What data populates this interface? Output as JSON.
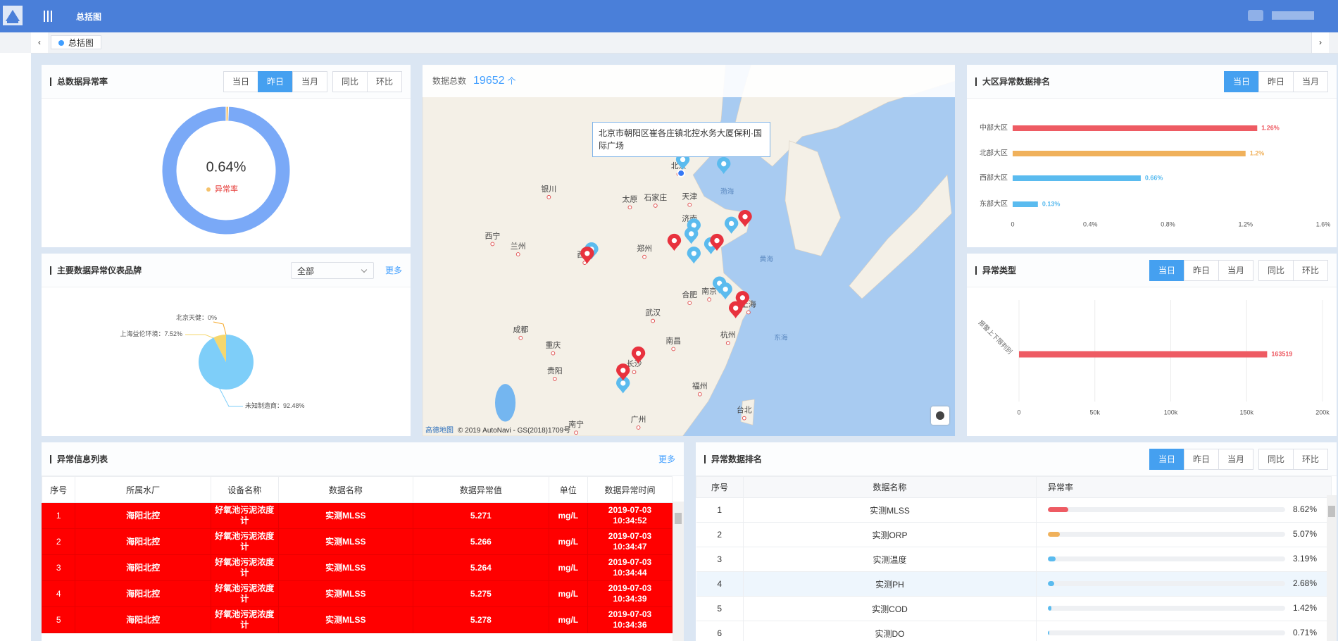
{
  "header": {
    "title": "总括图"
  },
  "tabs": [
    "总括图"
  ],
  "controls": {
    "period_buttons": [
      "当日",
      "昨日",
      "当月"
    ],
    "compare_buttons": [
      "同比",
      "环比"
    ],
    "more": "更多",
    "dropdown": "全部"
  },
  "chart_data": [
    {
      "type": "donut",
      "title": "总数据异常率",
      "categories": [
        "异常率",
        null
      ],
      "values": [
        0.64,
        99.36
      ],
      "value_labels": [
        "0.64%",
        null
      ],
      "colors": [
        "#f5c26b",
        "#7aa9f7"
      ],
      "active_button": 1,
      "compare_buttons": true
    },
    {
      "type": "pie",
      "title": "主要数据异常仪表品牌",
      "categories": [
        "北京天健",
        "上海益伦环境",
        "未知制造商"
      ],
      "values": [
        0,
        7.52,
        92.48
      ],
      "value_labels": [
        "0%",
        "7.52%",
        "92.48%"
      ],
      "label_separator": "：",
      "colors": [
        "#f5a623",
        "#f5d76e",
        "#7ecef9"
      ]
    },
    {
      "type": "hbar",
      "title": "大区异常数据排名",
      "categories": [
        "中部大区",
        "北部大区",
        "西部大区",
        "东部大区"
      ],
      "values": [
        1.26,
        1.2,
        0.66,
        0.13
      ],
      "value_labels": [
        "1.26%",
        "1.2%",
        "0.66%",
        "0.13%"
      ],
      "colors": [
        "#ee5b63",
        "#f0b15b",
        "#5abbef",
        "#5abbef"
      ],
      "xlim": [
        0,
        1.6
      ],
      "xticks": [
        0,
        {
          "value": 0.4,
          "label": "0.4%"
        },
        {
          "value": 0.8,
          "label": "0.8%"
        },
        {
          "value": 1.2,
          "label": "1.2%"
        },
        {
          "value": 1.6,
          "label": "1.6%"
        }
      ],
      "grid": false,
      "active_button": 0,
      "compare_buttons": false
    },
    {
      "type": "hbar",
      "title": "异常类型",
      "categories": [
        "报警上下限判别"
      ],
      "values": [
        163519
      ],
      "colors": [
        "#ee5b63"
      ],
      "xlim": [
        0,
        200000
      ],
      "xticks": [
        0,
        {
          "value": 50000,
          "label": "50k"
        },
        {
          "value": 100000,
          "label": "100k"
        },
        {
          "value": 150000,
          "label": "150k"
        },
        {
          "value": 200000,
          "label": "200k"
        }
      ],
      "grid": true,
      "active_button": 0,
      "compare_buttons": true
    }
  ],
  "map": {
    "total_label": "数据总数",
    "total": 19652,
    "unit": "个",
    "tooltip": "北京市朝阳区崔各庄镇北控水务大厦保利·国际广场",
    "places": [
      "北京",
      "天津",
      "石家庄",
      "太原",
      "银川",
      "兰州",
      "西宁",
      "西安",
      "郑州",
      "济南",
      "合肥",
      "南京",
      "上海",
      "杭州",
      "武汉",
      "成都",
      "重庆",
      "贵阳",
      "长沙",
      "南昌",
      "福州",
      "台北",
      "南宁",
      "广州"
    ],
    "seas": [
      "渤海",
      "黄海",
      "东海"
    ],
    "logo": "高德地图",
    "attribution": "© 2019 AutoNavi - GS(2018)1709号"
  },
  "abnormal_list": {
    "title": "异常信息列表",
    "columns": [
      "序号",
      "所属水厂",
      "设备名称",
      "数据名称",
      "数据异常值",
      "单位",
      "数据异常时间"
    ],
    "rows": [
      [
        1,
        "海阳北控",
        "好氧池污泥浓度计",
        "实测MLSS",
        5.271,
        "mg/L",
        "2019-07-03 10:34:52"
      ],
      [
        2,
        "海阳北控",
        "好氧池污泥浓度计",
        "实测MLSS",
        5.266,
        "mg/L",
        "2019-07-03 10:34:47"
      ],
      [
        3,
        "海阳北控",
        "好氧池污泥浓度计",
        "实测MLSS",
        5.264,
        "mg/L",
        "2019-07-03 10:34:44"
      ],
      [
        4,
        "海阳北控",
        "好氧池污泥浓度计",
        "实测MLSS",
        5.275,
        "mg/L",
        "2019-07-03 10:34:39"
      ],
      [
        5,
        "海阳北控",
        "好氧池污泥浓度计",
        "实测MLSS",
        5.278,
        "mg/L",
        "2019-07-03 10:34:36"
      ]
    ]
  },
  "abnormal_ranking": {
    "title": "异常数据排名",
    "columns": [
      "序号",
      "数据名称",
      "异常率"
    ],
    "rate_lim": [
      0,
      100
    ],
    "highlighted_row": 3,
    "active_button": 0,
    "compare_buttons": true,
    "rows": [
      {
        "no": 1,
        "name": "实测MLSS",
        "rate": 8.62,
        "rate_label": "8.62%",
        "color": "#ee5b63"
      },
      {
        "no": 2,
        "name": "实测ORP",
        "rate": 5.07,
        "rate_label": "5.07%",
        "color": "#f0b15b"
      },
      {
        "no": 3,
        "name": "实测温度",
        "rate": 3.19,
        "rate_label": "3.19%",
        "color": "#5abbef"
      },
      {
        "no": 4,
        "name": "实测PH",
        "rate": 2.68,
        "rate_label": "2.68%",
        "color": "#5abbef"
      },
      {
        "no": 5,
        "name": "实测COD",
        "rate": 1.42,
        "rate_label": "1.42%",
        "color": "#5abbef"
      },
      {
        "no": 6,
        "name": "实测DO",
        "rate": 0.71,
        "rate_label": "0.71%",
        "color": "#5abbef"
      }
    ]
  }
}
